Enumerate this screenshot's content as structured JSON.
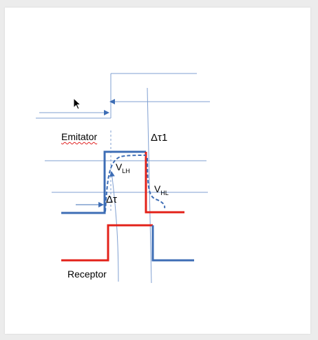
{
  "labels": {
    "emitter": "Emitator",
    "receiver": "Receptor",
    "delta_tau1": "Δτ1",
    "delta_tau": "Δτ",
    "v_lh_main": "V",
    "v_lh_sub": "LH",
    "v_hl_main": "V",
    "v_hl_sub": "HL"
  },
  "colors": {
    "blue_signal": "#3d6db5",
    "red_signal": "#e32119",
    "guide_line": "#7f9fd1",
    "background": "#ececec",
    "page": "#ffffff"
  },
  "icons": {
    "cursor": "mouse-pointer-icon"
  }
}
